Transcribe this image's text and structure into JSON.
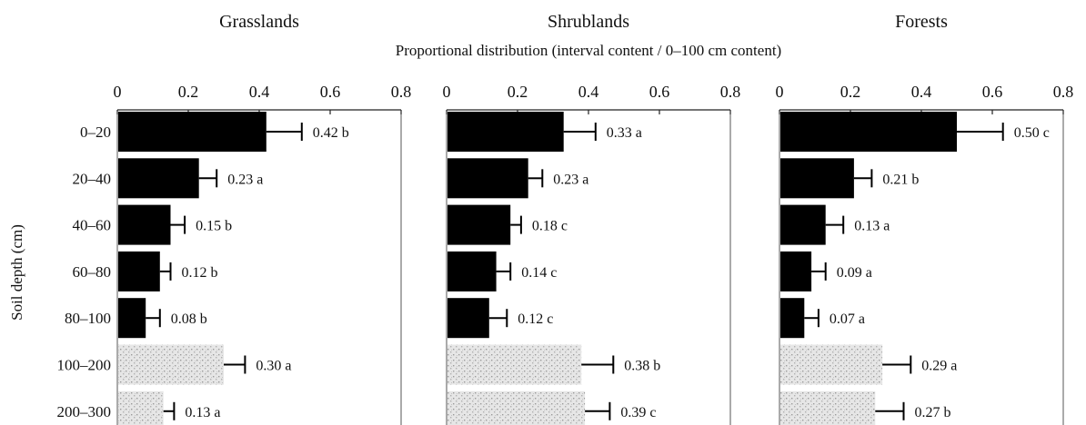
{
  "chart_data": {
    "type": "bar",
    "orientation": "horizontal",
    "subtitle": "Proportional distribution (interval content / 0–100 cm content)",
    "ylabel": "Soil depth (cm)",
    "categories": [
      "0–20",
      "20–40",
      "40–60",
      "60–80",
      "80–100",
      "100–200",
      "200–300"
    ],
    "xlim": [
      0,
      0.8
    ],
    "xticks": [
      "0",
      "0.2",
      "0.4",
      "0.6",
      "0.8"
    ],
    "colors": {
      "top_bars": "#000000",
      "deep_bars": "#d9d9d9"
    },
    "panels": [
      {
        "title": "Grasslands",
        "values": [
          0.42,
          0.23,
          0.15,
          0.12,
          0.08,
          0.3,
          0.13
        ],
        "error_upper": [
          0.52,
          0.28,
          0.19,
          0.15,
          0.12,
          0.36,
          0.16
        ],
        "labels": [
          "0.42 b",
          "0.23 a",
          "0.15 b",
          "0.12 b",
          "0.08 b",
          "0.30 a",
          "0.13 a"
        ]
      },
      {
        "title": "Shrublands",
        "values": [
          0.33,
          0.23,
          0.18,
          0.14,
          0.12,
          0.38,
          0.39
        ],
        "error_upper": [
          0.42,
          0.27,
          0.21,
          0.18,
          0.17,
          0.47,
          0.46
        ],
        "labels": [
          "0.33 a",
          "0.23 a",
          "0.18 c",
          "0.14 c",
          "0.12 c",
          "0.38 b",
          "0.39 c"
        ]
      },
      {
        "title": "Forests",
        "values": [
          0.5,
          0.21,
          0.13,
          0.09,
          0.07,
          0.29,
          0.27
        ],
        "error_upper": [
          0.63,
          0.26,
          0.18,
          0.13,
          0.11,
          0.37,
          0.35
        ],
        "labels": [
          "0.50 c",
          "0.21 b",
          "0.13 a",
          "0.09 a",
          "0.07 a",
          "0.29 a",
          "0.27 b"
        ]
      }
    ]
  }
}
